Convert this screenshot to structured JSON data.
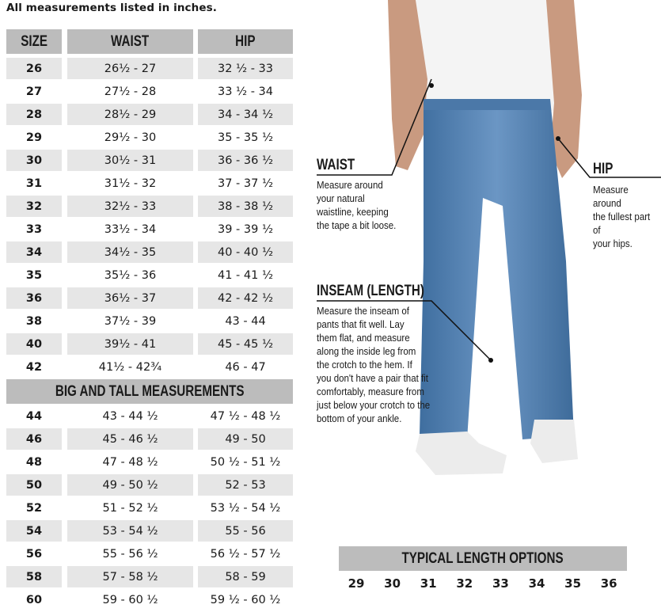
{
  "note": "All measurements listed in inches.",
  "table": {
    "headers": [
      "SIZE",
      "WAIST",
      "HIP"
    ],
    "rows": [
      [
        "26",
        "26½ - 27",
        "32 ½ - 33"
      ],
      [
        "27",
        "27½ - 28",
        "33 ½ - 34"
      ],
      [
        "28",
        "28½ - 29",
        "34 - 34 ½"
      ],
      [
        "29",
        "29½ - 30",
        "35 - 35 ½"
      ],
      [
        "30",
        "30½ - 31",
        "36 - 36 ½"
      ],
      [
        "31",
        "31½ - 32",
        "37 - 37 ½"
      ],
      [
        "32",
        "32½ - 33",
        "38 - 38 ½"
      ],
      [
        "33",
        "33½ - 34",
        "39 - 39 ½"
      ],
      [
        "34",
        "34½ - 35",
        "40 - 40 ½"
      ],
      [
        "35",
        "35½ - 36",
        "41 - 41 ½"
      ],
      [
        "36",
        "36½ - 37",
        "42 - 42 ½"
      ],
      [
        "38",
        "37½ - 39",
        "43 - 44"
      ],
      [
        "40",
        "39½ - 41",
        "45 - 45 ½"
      ],
      [
        "42",
        "41½ - 42¾",
        "46 - 47"
      ]
    ],
    "big_tall_title": "BIG AND TALL MEASUREMENTS",
    "big_tall_rows": [
      [
        "44",
        "43 - 44 ½",
        "47 ½ - 48 ½"
      ],
      [
        "46",
        "45 - 46 ½",
        "49 - 50"
      ],
      [
        "48",
        "47 - 48 ½",
        "50 ½ - 51 ½"
      ],
      [
        "50",
        "49 - 50 ½",
        "52 - 53"
      ],
      [
        "52",
        "51 - 52 ½",
        "53 ½ - 54 ½"
      ],
      [
        "54",
        "53 - 54 ½",
        "55 - 56"
      ],
      [
        "56",
        "55 - 56 ½",
        "56 ½ - 57 ½"
      ],
      [
        "58",
        "57 - 58 ½",
        "58 - 59"
      ],
      [
        "60",
        "59 - 60 ½",
        "59 ½ - 60 ½"
      ]
    ]
  },
  "callouts": {
    "waist": {
      "title": "WAIST",
      "text": "Measure around\nyour natural\nwaistline, keeping\nthe tape a bit loose."
    },
    "hip": {
      "title": "HIP",
      "text": "Measure around\nthe fullest part of\nyour hips."
    },
    "inseam": {
      "title": "INSEAM (LENGTH)",
      "text": "Measure the inseam of\npants that fit well. Lay\nthem flat, and measure\nalong the inside leg from\nthe crotch to the hem. If\nyou don't have a pair that fit\ncomfortably, measure from\njust below your crotch to the\nbottom of your ankle."
    }
  },
  "lengths": {
    "title": "TYPICAL LENGTH OPTIONS",
    "values": [
      "29",
      "30",
      "31",
      "32",
      "33",
      "34",
      "35",
      "36"
    ]
  },
  "colors": {
    "header_gray": "#bcbcbc",
    "row_shade": "#e6e6e6",
    "denim": "#5b86b5"
  }
}
